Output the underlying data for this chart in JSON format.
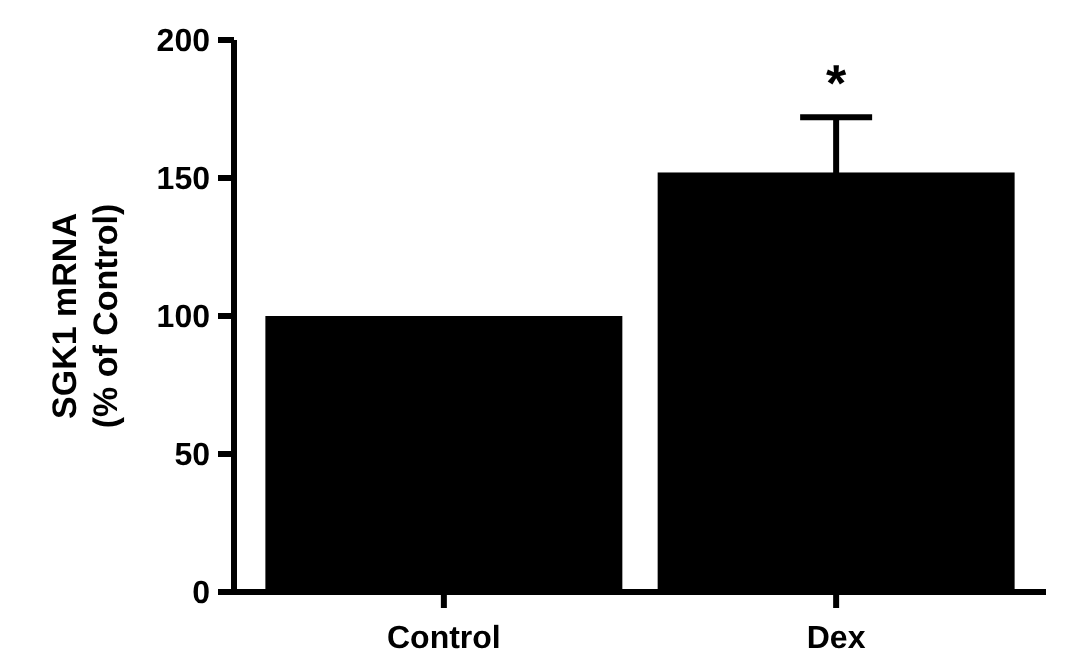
{
  "chart_data": {
    "type": "bar",
    "ylabel": "SGK1 mRNA\n(% of Control)",
    "categories": [
      "Control",
      "Dex"
    ],
    "values": [
      100,
      152
    ],
    "errors": [
      null,
      20
    ],
    "color": "#000000",
    "ylim": [
      0,
      200
    ],
    "yticks": [
      0,
      50,
      100,
      150,
      200
    ],
    "grid": false,
    "annotations": [
      {
        "text": "*",
        "x": "Dex",
        "y": 172
      }
    ]
  }
}
